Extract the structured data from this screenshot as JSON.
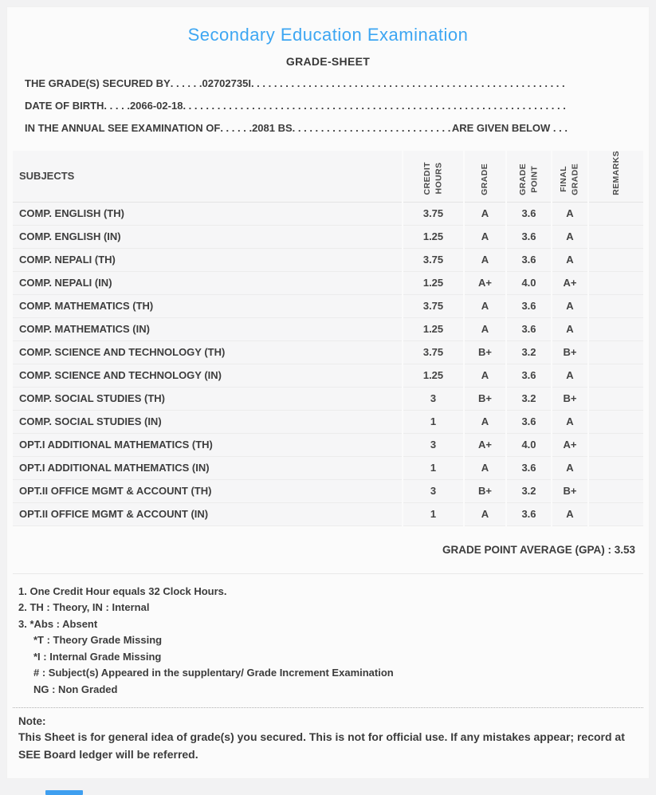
{
  "page": {
    "title": "Secondary Education Examination",
    "subtitle": "GRADE-SHEET"
  },
  "colors": {
    "accent_blue": "#3da6f2",
    "text": "#3c3c3c",
    "cell_bg": "#f6f6f7",
    "card_bg": "#fbfbfb",
    "page_bg": "#f2f2f3"
  },
  "leader_dots": ". . . . . . . . . . . . . . . . . . . . . . . . . . . . . . . . . . . . . . . . . . . . . . . . . . . . . . . . . . . . . . . . . . . . . . . . . . . . . . . .",
  "info_lines": [
    {
      "label": "THE GRADE(S) SECURED BY",
      "mid_dots": " . . . . . . ",
      "value": "02702735I ",
      "suffix": ""
    },
    {
      "label": "DATE OF BIRTH",
      "mid_dots": " . . . . . ",
      "value": "2066-02-18 ",
      "suffix": ""
    },
    {
      "label": "IN THE ANNUAL SEE EXAMINATION OF",
      "mid_dots": " . . . . . . ",
      "value": "2081 BS ",
      "suffix": " ARE GIVEN BELOW . . ."
    }
  ],
  "table": {
    "columns": [
      "SUBJECTS",
      "CREDIT\nHOURS",
      "GRADE",
      "GRADE\nPOINT",
      "FINAL\nGRADE",
      "REMARKS"
    ],
    "rows": [
      {
        "subject": "COMP. ENGLISH (TH)",
        "credit_hours": "3.75",
        "grade": "A",
        "grade_point": "3.6",
        "final_grade": "A",
        "remarks": ""
      },
      {
        "subject": "COMP. ENGLISH (IN)",
        "credit_hours": "1.25",
        "grade": "A",
        "grade_point": "3.6",
        "final_grade": "A",
        "remarks": ""
      },
      {
        "subject": "COMP. NEPALI (TH)",
        "credit_hours": "3.75",
        "grade": "A",
        "grade_point": "3.6",
        "final_grade": "A",
        "remarks": ""
      },
      {
        "subject": "COMP. NEPALI (IN)",
        "credit_hours": "1.25",
        "grade": "A+",
        "grade_point": "4.0",
        "final_grade": "A+",
        "remarks": ""
      },
      {
        "subject": "COMP. MATHEMATICS (TH)",
        "credit_hours": "3.75",
        "grade": "A",
        "grade_point": "3.6",
        "final_grade": "A",
        "remarks": ""
      },
      {
        "subject": "COMP. MATHEMATICS (IN)",
        "credit_hours": "1.25",
        "grade": "A",
        "grade_point": "3.6",
        "final_grade": "A",
        "remarks": ""
      },
      {
        "subject": "COMP. SCIENCE AND TECHNOLOGY (TH)",
        "credit_hours": "3.75",
        "grade": "B+",
        "grade_point": "3.2",
        "final_grade": "B+",
        "remarks": ""
      },
      {
        "subject": "COMP. SCIENCE AND TECHNOLOGY (IN)",
        "credit_hours": "1.25",
        "grade": "A",
        "grade_point": "3.6",
        "final_grade": "A",
        "remarks": ""
      },
      {
        "subject": "COMP. SOCIAL STUDIES (TH)",
        "credit_hours": "3",
        "grade": "B+",
        "grade_point": "3.2",
        "final_grade": "B+",
        "remarks": ""
      },
      {
        "subject": "COMP. SOCIAL STUDIES (IN)",
        "credit_hours": "1",
        "grade": "A",
        "grade_point": "3.6",
        "final_grade": "A",
        "remarks": ""
      },
      {
        "subject": "OPT.I ADDITIONAL MATHEMATICS (TH)",
        "credit_hours": "3",
        "grade": "A+",
        "grade_point": "4.0",
        "final_grade": "A+",
        "remarks": ""
      },
      {
        "subject": "OPT.I ADDITIONAL MATHEMATICS (IN)",
        "credit_hours": "1",
        "grade": "A",
        "grade_point": "3.6",
        "final_grade": "A",
        "remarks": ""
      },
      {
        "subject": "OPT.II OFFICE MGMT & ACCOUNT (TH)",
        "credit_hours": "3",
        "grade": "B+",
        "grade_point": "3.2",
        "final_grade": "B+",
        "remarks": ""
      },
      {
        "subject": "OPT.II OFFICE MGMT & ACCOUNT (IN)",
        "credit_hours": "1",
        "grade": "A",
        "grade_point": "3.6",
        "final_grade": "A",
        "remarks": ""
      }
    ],
    "gpa_line": "GRADE POINT AVERAGE (GPA) : 3.53"
  },
  "footnotes": [
    {
      "text": "1. One Credit Hour equals 32 Clock Hours.",
      "indent": false
    },
    {
      "text": "2. TH : Theory, IN : Internal",
      "indent": false
    },
    {
      "text": "3. *Abs : Absent",
      "indent": false
    },
    {
      "text": "*T : Theory Grade Missing",
      "indent": true
    },
    {
      "text": "*I : Internal Grade Missing",
      "indent": true
    },
    {
      "text": "# : Subject(s) Appeared in the supplentary/ Grade Increment Examination",
      "indent": true
    },
    {
      "text": "NG : Non Graded",
      "indent": true
    }
  ],
  "note": {
    "label": "Note:",
    "text": "This Sheet is for general idea of grade(s) you secured. This is not for official use. If any mistakes appear; record at SEE Board ledger will be referred."
  }
}
